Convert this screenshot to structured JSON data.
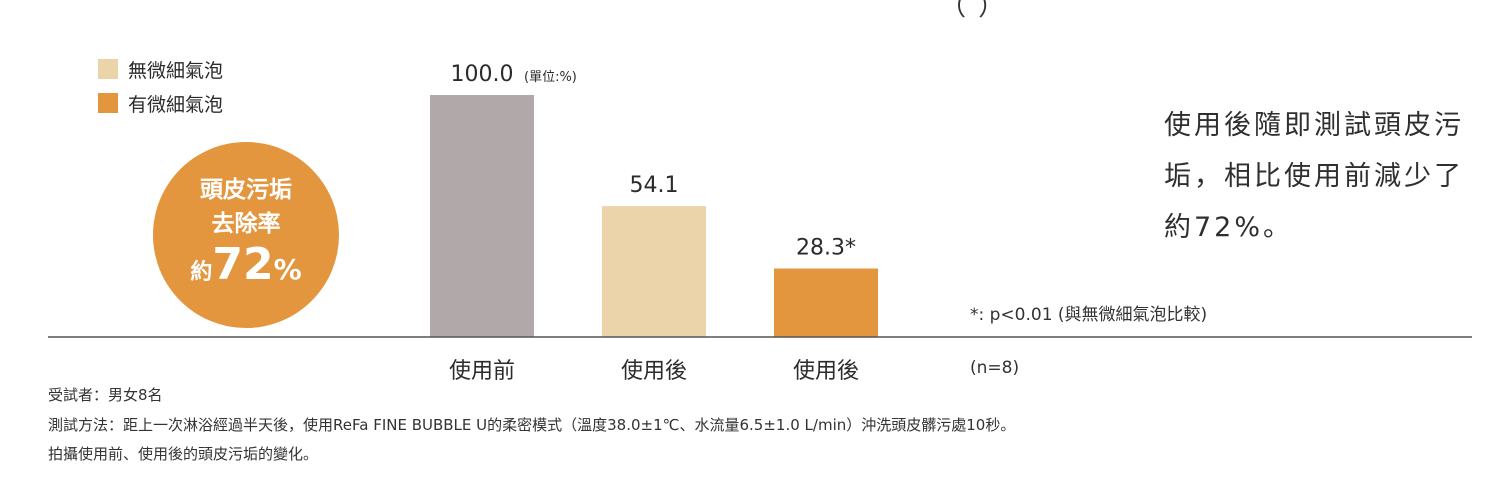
{
  "chart_data": {
    "type": "bar",
    "categories": [
      "使用前",
      "使用後",
      "使用後"
    ],
    "values": [
      100.0,
      54.1,
      28.3
    ],
    "value_labels": [
      "100.0",
      "54.1",
      "28.3*"
    ],
    "unit_label": "(單位:%)",
    "ylim": [
      0,
      100
    ],
    "grid": false,
    "legend": {
      "placement": "top-left",
      "items": [
        {
          "label": "無微細氣泡",
          "color": "#ebd4aa"
        },
        {
          "label": "有微細氣泡",
          "color": "#e3963d"
        }
      ]
    },
    "bar_colors": [
      "#b1a9a9",
      "#ebd4aa",
      "#e3963d"
    ]
  },
  "badge": {
    "line1": "頭皮污垢",
    "line2": "去除率",
    "prefix": "約",
    "number": "72",
    "suffix": "%",
    "color": "#e3963d"
  },
  "side_text": "使用後隨即測試頭皮污垢，相比使用前減少了約72%。",
  "p_note": "*: p<0.01 (與無微細氣泡比較)",
  "n_note": "(n=8)",
  "footnotes": [
    "受試者：男女8名",
    "測試方法：距上一次淋浴經過半天後，使用ReFa FINE BUBBLE U的柔密模式（溫度38.0±1℃、水流量6.5±1.0 L/min）沖洗頭皮髒污處10秒。",
    "拍攝使用前、使用後的頭皮污垢的變化。"
  ],
  "cut_text": "（ ）"
}
